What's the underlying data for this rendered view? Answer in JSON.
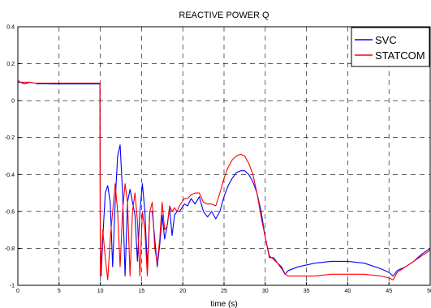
{
  "chart_data": {
    "type": "line",
    "title": "REACTIVE POWER Q",
    "xlabel": "time (s)",
    "ylabel": "",
    "xlim": [
      0,
      50
    ],
    "ylim": [
      -1,
      0.4
    ],
    "xticks": [
      0,
      5,
      10,
      15,
      20,
      25,
      30,
      35,
      40,
      45,
      50
    ],
    "yticks": [
      -1,
      -0.8,
      -0.6,
      -0.4,
      -0.2,
      0,
      0.2,
      0.4
    ],
    "xtick_labels": [
      "0",
      "5",
      "10",
      "15",
      "20",
      "25",
      "30",
      "35",
      "40",
      "45",
      "50"
    ],
    "ytick_labels": [
      "-1",
      "-0.8",
      "-0.6",
      "-0.4",
      "-0.2",
      "0",
      "0.2",
      "0.4"
    ],
    "grid": true,
    "legend_position": "top-right",
    "series": [
      {
        "name": "SVC",
        "color": "#0000ff",
        "x": [
          0,
          0.3,
          0.8,
          1.5,
          2,
          2.5,
          3,
          4,
          5,
          6,
          7,
          8,
          9,
          9.95,
          10.0,
          10.1,
          10.3,
          10.6,
          10.9,
          11.2,
          11.5,
          11.8,
          12.1,
          12.4,
          12.7,
          13.0,
          13.3,
          13.6,
          13.9,
          14.2,
          14.5,
          14.8,
          15.1,
          15.4,
          15.7,
          16.0,
          16.3,
          16.6,
          16.9,
          17.2,
          17.5,
          17.8,
          18.1,
          18.4,
          18.7,
          19.0,
          19.3,
          19.6,
          19.9,
          20.2,
          20.6,
          21.0,
          21.5,
          22.0,
          22.5,
          23.0,
          23.5,
          24.0,
          24.5,
          25.0,
          25.5,
          26.0,
          26.5,
          27.0,
          27.5,
          28.0,
          28.5,
          29.0,
          29.5,
          30.0,
          30.5,
          31.0,
          31.5,
          32.0,
          32.4,
          32.8,
          34,
          36,
          38,
          40,
          42,
          44,
          45,
          45.5,
          46,
          47,
          48,
          49,
          50
        ],
        "y": [
          0.1,
          0.1,
          0.09,
          0.1,
          0.095,
          0.09,
          0.092,
          0.09,
          0.09,
          0.09,
          0.09,
          0.09,
          0.09,
          0.09,
          -0.8,
          -0.95,
          -0.75,
          -0.5,
          -0.46,
          -0.55,
          -0.9,
          -0.55,
          -0.3,
          -0.24,
          -0.5,
          -0.95,
          -0.55,
          -0.48,
          -0.55,
          -0.62,
          -0.87,
          -0.6,
          -0.45,
          -0.6,
          -0.9,
          -0.6,
          -0.6,
          -0.75,
          -0.9,
          -0.78,
          -0.62,
          -0.75,
          -0.68,
          -0.58,
          -0.73,
          -0.62,
          -0.6,
          -0.6,
          -0.58,
          -0.56,
          -0.57,
          -0.53,
          -0.56,
          -0.52,
          -0.6,
          -0.63,
          -0.6,
          -0.64,
          -0.6,
          -0.52,
          -0.46,
          -0.42,
          -0.39,
          -0.38,
          -0.38,
          -0.4,
          -0.44,
          -0.5,
          -0.6,
          -0.74,
          -0.85,
          -0.85,
          -0.88,
          -0.91,
          -0.94,
          -0.92,
          -0.9,
          -0.88,
          -0.87,
          -0.87,
          -0.88,
          -0.91,
          -0.93,
          -0.95,
          -0.92,
          -0.9,
          -0.87,
          -0.83,
          -0.8
        ]
      },
      {
        "name": "STATCOM",
        "color": "#ff0000",
        "x": [
          0,
          0.3,
          0.8,
          1.5,
          2,
          2.5,
          3,
          4,
          5,
          6,
          7,
          8,
          9,
          9.95,
          10.0,
          10.1,
          10.3,
          10.6,
          10.9,
          11.2,
          11.5,
          11.8,
          12.1,
          12.4,
          12.7,
          13.0,
          13.3,
          13.6,
          13.9,
          14.2,
          14.5,
          14.8,
          15.1,
          15.4,
          15.7,
          16.0,
          16.3,
          16.6,
          16.9,
          17.2,
          17.5,
          17.8,
          18.1,
          18.4,
          18.7,
          19.0,
          19.3,
          19.6,
          19.9,
          20.2,
          20.6,
          21.0,
          21.5,
          22.0,
          22.5,
          23.0,
          23.5,
          24.0,
          24.5,
          25.0,
          25.5,
          26.0,
          26.5,
          27.0,
          27.5,
          28.0,
          28.5,
          29.0,
          29.5,
          30.0,
          30.5,
          31.0,
          31.5,
          32.0,
          32.4,
          32.8,
          34,
          36,
          38,
          40,
          42,
          44,
          45,
          45.5,
          46,
          47,
          48,
          49,
          50
        ],
        "y": [
          0.11,
          0.1,
          0.1,
          0.1,
          0.095,
          0.095,
          0.095,
          0.095,
          0.095,
          0.095,
          0.095,
          0.095,
          0.095,
          0.095,
          -0.95,
          -0.9,
          -0.7,
          -0.85,
          -0.97,
          -0.75,
          -0.6,
          -0.45,
          -0.6,
          -0.9,
          -0.6,
          -0.45,
          -0.55,
          -0.95,
          -0.6,
          -0.5,
          -0.65,
          -0.95,
          -0.6,
          -0.7,
          -0.95,
          -0.6,
          -0.55,
          -0.8,
          -0.88,
          -0.75,
          -0.55,
          -0.7,
          -0.68,
          -0.57,
          -0.6,
          -0.58,
          -0.6,
          -0.57,
          -0.55,
          -0.53,
          -0.53,
          -0.51,
          -0.5,
          -0.5,
          -0.55,
          -0.56,
          -0.56,
          -0.57,
          -0.5,
          -0.42,
          -0.36,
          -0.32,
          -0.3,
          -0.29,
          -0.3,
          -0.34,
          -0.4,
          -0.5,
          -0.63,
          -0.74,
          -0.84,
          -0.86,
          -0.88,
          -0.9,
          -0.94,
          -0.95,
          -0.95,
          -0.95,
          -0.94,
          -0.94,
          -0.94,
          -0.95,
          -0.96,
          -0.97,
          -0.93,
          -0.9,
          -0.87,
          -0.84,
          -0.81
        ]
      }
    ]
  }
}
